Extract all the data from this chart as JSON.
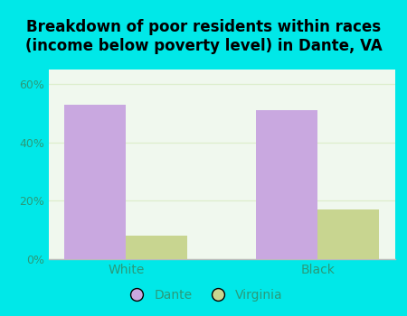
{
  "title": "Breakdown of poor residents within races\n(income below poverty level) in Dante, VA",
  "categories": [
    "White",
    "Black"
  ],
  "dante_values": [
    53.0,
    51.0
  ],
  "virginia_values": [
    8.0,
    17.0
  ],
  "dante_color": "#c9a8e0",
  "virginia_color": "#c8d590",
  "background_color": "#00e8e8",
  "plot_bg_color": "#f0f8ee",
  "yticks": [
    0,
    20,
    40,
    60
  ],
  "ylim": [
    0,
    65
  ],
  "bar_width": 0.32,
  "legend_labels": [
    "Dante",
    "Virginia"
  ],
  "title_fontsize": 12,
  "tick_color": "#2a9a7a",
  "axis_line_color": "#bbbbbb",
  "grid_color": "#ddeecc"
}
